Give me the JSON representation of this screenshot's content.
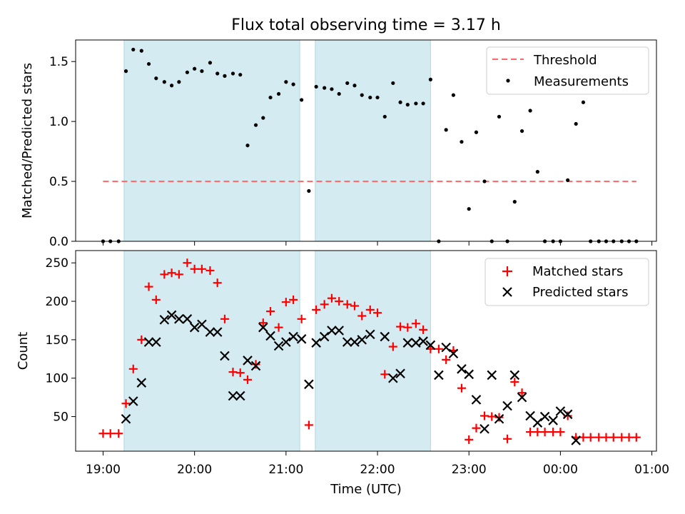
{
  "figure_title": "Flux total observing time = 3.17 h",
  "x_axis": {
    "label": "Time (UTC)",
    "range_hours": [
      18.7,
      25.05
    ],
    "tick_values": [
      19,
      20,
      21,
      22,
      23,
      24,
      25
    ],
    "tick_labels": [
      "19:00",
      "20:00",
      "21:00",
      "22:00",
      "23:00",
      "00:00",
      "01:00"
    ]
  },
  "shaded_intervals_hours": [
    [
      19.23,
      21.15
    ],
    [
      21.32,
      22.58
    ]
  ],
  "colors": {
    "shade": "#add8e6",
    "threshold": "#ff6666",
    "matched": "#ff0000",
    "predicted": "#000000",
    "measurement": "#000000"
  },
  "chart_data": [
    {
      "type": "scatter",
      "title": "Flux total observing time = 3.17 h",
      "xlabel": "",
      "ylabel": "Matched/Predicted stars",
      "ylim": [
        0,
        1.68
      ],
      "yticks": [
        0,
        0.5,
        1.0,
        1.5
      ],
      "ytick_labels": [
        "0.0",
        "0.5",
        "1.0",
        "1.5"
      ],
      "legend": {
        "position": "top-right",
        "entries": [
          "Threshold",
          "Measurements"
        ]
      },
      "threshold": {
        "name": "Threshold",
        "value": 0.5,
        "x_range": [
          19.0,
          24.83
        ]
      },
      "series": [
        {
          "name": "Measurements",
          "x": [
            19.0,
            19.08,
            19.17,
            19.25,
            19.33,
            19.42,
            19.5,
            19.58,
            19.67,
            19.75,
            19.83,
            19.92,
            20.0,
            20.08,
            20.17,
            20.25,
            20.33,
            20.42,
            20.5,
            20.58,
            20.67,
            20.75,
            20.83,
            20.92,
            21.0,
            21.08,
            21.17,
            21.25,
            21.33,
            21.42,
            21.5,
            21.58,
            21.67,
            21.75,
            21.83,
            21.92,
            22.0,
            22.08,
            22.17,
            22.25,
            22.33,
            22.42,
            22.5,
            22.58,
            22.67,
            22.75,
            22.83,
            22.92,
            23.0,
            23.08,
            23.17,
            23.25,
            23.33,
            23.42,
            23.5,
            23.58,
            23.67,
            23.75,
            23.83,
            23.92,
            24.0,
            24.08,
            24.17,
            24.25,
            24.33,
            24.42,
            24.5,
            24.58,
            24.67,
            24.75,
            24.83
          ],
          "y": [
            0.0,
            0.0,
            0.0,
            1.42,
            1.6,
            1.59,
            1.48,
            1.36,
            1.33,
            1.3,
            1.33,
            1.41,
            1.44,
            1.42,
            1.49,
            1.4,
            1.38,
            1.4,
            1.39,
            0.8,
            0.97,
            1.03,
            1.2,
            1.23,
            1.33,
            1.31,
            1.18,
            0.42,
            1.29,
            1.28,
            1.27,
            1.23,
            1.32,
            1.3,
            1.22,
            1.2,
            1.2,
            1.04,
            1.32,
            1.16,
            1.14,
            1.15,
            1.15,
            1.35,
            0.0,
            0.93,
            1.22,
            0.83,
            0.27,
            0.91,
            0.5,
            0.0,
            1.04,
            0.0,
            0.33,
            0.92,
            1.09,
            0.58,
            0.0,
            0.0,
            0.0,
            0.51,
            0.98,
            1.16,
            0.0,
            0.0,
            0.0,
            0.0,
            0.0,
            0.0,
            0.0
          ]
        }
      ]
    },
    {
      "type": "scatter",
      "title": "",
      "xlabel": "Time (UTC)",
      "ylabel": "Count",
      "ylim": [
        5,
        266
      ],
      "yticks": [
        50,
        100,
        150,
        200,
        250
      ],
      "ytick_labels": [
        "50",
        "100",
        "150",
        "200",
        "250"
      ],
      "legend": {
        "position": "top-right",
        "entries": [
          "Matched stars",
          "Predicted stars"
        ]
      },
      "series": [
        {
          "name": "Matched stars",
          "marker": "plus",
          "x": [
            19.0,
            19.08,
            19.17,
            19.25,
            19.33,
            19.42,
            19.5,
            19.58,
            19.67,
            19.75,
            19.83,
            19.92,
            20.0,
            20.08,
            20.17,
            20.25,
            20.33,
            20.42,
            20.5,
            20.58,
            20.67,
            20.75,
            20.83,
            20.92,
            21.0,
            21.08,
            21.17,
            21.25,
            21.33,
            21.42,
            21.5,
            21.58,
            21.67,
            21.75,
            21.83,
            21.92,
            22.0,
            22.08,
            22.17,
            22.25,
            22.33,
            22.42,
            22.5,
            22.58,
            22.67,
            22.75,
            22.83,
            22.92,
            23.0,
            23.08,
            23.17,
            23.25,
            23.33,
            23.42,
            23.5,
            23.58,
            23.67,
            23.75,
            23.83,
            23.92,
            24.0,
            24.08,
            24.17,
            24.25,
            24.33,
            24.42,
            24.5,
            24.58,
            24.67,
            24.75,
            24.83
          ],
          "y": [
            28,
            28,
            28,
            67,
            112,
            150,
            219,
            202,
            235,
            237,
            235,
            250,
            242,
            242,
            240,
            224,
            177,
            108,
            107,
            98,
            118,
            172,
            187,
            166,
            199,
            202,
            177,
            39,
            189,
            196,
            204,
            200,
            196,
            194,
            181,
            189,
            185,
            105,
            141,
            167,
            166,
            171,
            163,
            138,
            138,
            124,
            136,
            87,
            20,
            35,
            51,
            50,
            49,
            21,
            95,
            81,
            30,
            30,
            30,
            30,
            30,
            51,
            23,
            23,
            23,
            23,
            23,
            23,
            23,
            23,
            23
          ]
        },
        {
          "name": "Predicted stars",
          "marker": "x",
          "x": [
            19.25,
            19.33,
            19.42,
            19.5,
            19.58,
            19.67,
            19.75,
            19.83,
            19.92,
            20.0,
            20.08,
            20.17,
            20.25,
            20.33,
            20.42,
            20.5,
            20.58,
            20.67,
            20.75,
            20.83,
            20.92,
            21.0,
            21.08,
            21.17,
            21.25,
            21.33,
            21.42,
            21.5,
            21.58,
            21.67,
            21.75,
            21.83,
            21.92,
            22.08,
            22.17,
            22.25,
            22.33,
            22.42,
            22.5,
            22.58,
            22.67,
            22.75,
            22.83,
            22.92,
            23.0,
            23.08,
            23.17,
            23.25,
            23.33,
            23.42,
            23.5,
            23.58,
            23.67,
            23.75,
            23.83,
            23.92,
            24.0,
            24.08,
            24.17
          ],
          "y": [
            47,
            70,
            94,
            147,
            147,
            176,
            182,
            177,
            177,
            166,
            170,
            160,
            160,
            129,
            77,
            77,
            123,
            116,
            166,
            155,
            142,
            147,
            154,
            151,
            92,
            146,
            154,
            162,
            162,
            147,
            147,
            150,
            157,
            154,
            100,
            106,
            146,
            146,
            148,
            143,
            104,
            140,
            132,
            112,
            105,
            72,
            34,
            104,
            47,
            64,
            104,
            75,
            51,
            42,
            50,
            45,
            57,
            53,
            19
          ]
        }
      ]
    }
  ]
}
